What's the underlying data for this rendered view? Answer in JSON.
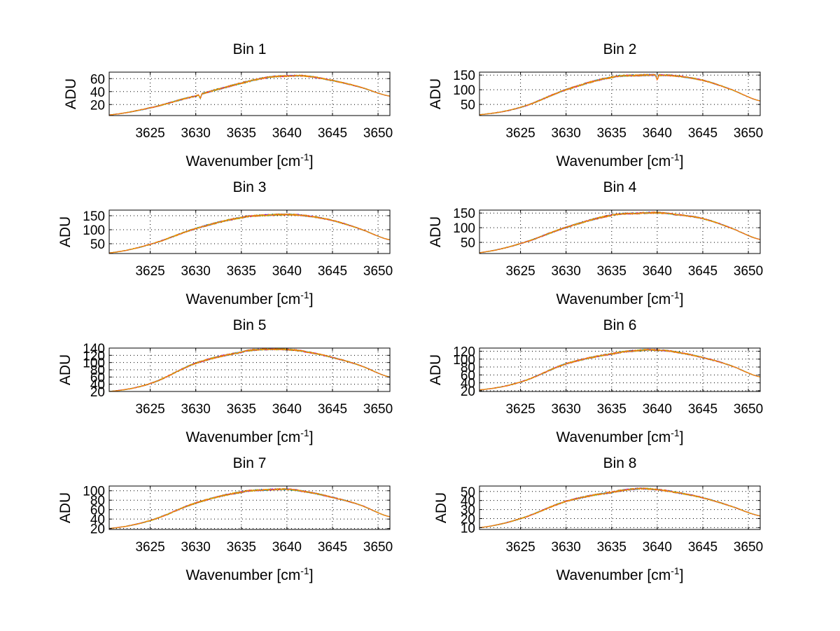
{
  "figure": {
    "background": "#ffffff",
    "series_colors": [
      "#0000ff",
      "#007f00",
      "#ff0000",
      "#00bfbf",
      "#bf00bf",
      "#bfbf00",
      "#ff8000"
    ]
  },
  "chart_data": [
    {
      "type": "line",
      "title": "Bin 1",
      "xlabel": "Wavenumber [cm",
      "xlabel_sup": "-1",
      "xlabel_end": "]",
      "ylabel": "ADU",
      "xlim": [
        3620.5,
        3651.3
      ],
      "ylim": [
        3,
        70
      ],
      "xticks": [
        3625,
        3630,
        3635,
        3640,
        3645,
        3650
      ],
      "xticklabels": [
        "3625",
        "3630",
        "3635",
        "3640",
        "3645",
        "3650"
      ],
      "yticks": [
        20,
        40,
        60
      ],
      "yticklabels": [
        "20",
        "40",
        "60"
      ],
      "grid": true,
      "x": [
        3620.5,
        3625,
        3630,
        3632,
        3635,
        3638,
        3640,
        3642,
        3645,
        3648,
        3651.3
      ],
      "y": [
        4,
        15,
        33,
        42,
        53,
        62,
        64,
        64,
        57,
        47,
        33
      ],
      "features": [
        {
          "x": 3630.5,
          "depth": 6
        }
      ]
    },
    {
      "type": "line",
      "title": "Bin 2",
      "xlabel": "Wavenumber [cm",
      "xlabel_sup": "-1",
      "xlabel_end": "]",
      "ylabel": "ADU",
      "xlim": [
        3620.5,
        3651.3
      ],
      "ylim": [
        12,
        160
      ],
      "xticks": [
        3625,
        3630,
        3635,
        3640,
        3645,
        3650
      ],
      "xticklabels": [
        "3625",
        "3630",
        "3635",
        "3640",
        "3645",
        "3650"
      ],
      "yticks": [
        50,
        100,
        150
      ],
      "yticklabels": [
        "50",
        "100",
        "150"
      ],
      "grid": true,
      "x": [
        3620.5,
        3625,
        3630,
        3635,
        3638,
        3640,
        3642,
        3645,
        3648,
        3651.3
      ],
      "y": [
        15,
        40,
        100,
        142,
        149,
        150,
        147,
        132,
        102,
        62
      ],
      "features": [
        {
          "x": 3640,
          "depth": 15
        }
      ]
    },
    {
      "type": "line",
      "title": "Bin 3",
      "xlabel": "Wavenumber [cm",
      "xlabel_sup": "-1",
      "xlabel_end": "]",
      "ylabel": "ADU",
      "xlim": [
        3620.5,
        3651.3
      ],
      "ylim": [
        15,
        170
      ],
      "xticks": [
        3625,
        3630,
        3635,
        3640,
        3645,
        3650
      ],
      "xticklabels": [
        "3625",
        "3630",
        "3635",
        "3640",
        "3645",
        "3650"
      ],
      "yticks": [
        50,
        100,
        150
      ],
      "yticklabels": [
        "50",
        "100",
        "150"
      ],
      "grid": true,
      "x": [
        3620.5,
        3625,
        3630,
        3635,
        3638,
        3640,
        3642,
        3645,
        3648,
        3651.3
      ],
      "y": [
        17,
        48,
        104,
        143,
        152,
        154,
        150,
        133,
        103,
        64
      ],
      "features": []
    },
    {
      "type": "line",
      "title": "Bin 4",
      "xlabel": "Wavenumber [cm",
      "xlabel_sup": "-1",
      "xlabel_end": "]",
      "ylabel": "ADU",
      "xlim": [
        3620.5,
        3651.3
      ],
      "ylim": [
        12,
        160
      ],
      "xticks": [
        3625,
        3630,
        3635,
        3640,
        3645,
        3650
      ],
      "xticklabels": [
        "3625",
        "3630",
        "3635",
        "3640",
        "3645",
        "3650"
      ],
      "yticks": [
        50,
        100,
        150
      ],
      "yticklabels": [
        "50",
        "100",
        "150"
      ],
      "grid": true,
      "x": [
        3620.5,
        3625,
        3630,
        3635,
        3638,
        3640,
        3642,
        3645,
        3648,
        3651.3
      ],
      "y": [
        15,
        46,
        101,
        142,
        149,
        151,
        145,
        131,
        100,
        60
      ],
      "features": []
    },
    {
      "type": "line",
      "title": "Bin 5",
      "xlabel": "Wavenumber [cm",
      "xlabel_sup": "-1",
      "xlabel_end": "]",
      "ylabel": "ADU",
      "xlim": [
        3620.5,
        3651.3
      ],
      "ylim": [
        20,
        140
      ],
      "xticks": [
        3625,
        3630,
        3635,
        3640,
        3645,
        3650
      ],
      "xticklabels": [
        "3625",
        "3630",
        "3635",
        "3640",
        "3645",
        "3650"
      ],
      "yticks": [
        20,
        40,
        60,
        80,
        100,
        120,
        140
      ],
      "yticklabels": [
        "20",
        "40",
        "60",
        "80",
        "100",
        "120",
        "140"
      ],
      "grid": true,
      "x": [
        3620.5,
        3625,
        3630,
        3635,
        3637,
        3640,
        3642,
        3645,
        3648,
        3651.3
      ],
      "y": [
        20,
        42,
        98,
        128,
        136,
        136,
        130,
        114,
        92,
        60
      ],
      "features": []
    },
    {
      "type": "line",
      "title": "Bin 6",
      "xlabel": "Wavenumber [cm",
      "xlabel_sup": "-1",
      "xlabel_end": "]",
      "ylabel": "ADU",
      "xlim": [
        3620.5,
        3651.3
      ],
      "ylim": [
        18,
        128
      ],
      "xticks": [
        3625,
        3630,
        3635,
        3640,
        3645,
        3650
      ],
      "xticklabels": [
        "3625",
        "3630",
        "3635",
        "3640",
        "3645",
        "3650"
      ],
      "yticks": [
        20,
        40,
        60,
        80,
        100,
        120
      ],
      "yticklabels": [
        "20",
        "40",
        "60",
        "80",
        "100",
        "120"
      ],
      "grid": true,
      "x": [
        3620.5,
        3625,
        3630,
        3635,
        3638,
        3640,
        3642,
        3645,
        3648,
        3651.3
      ],
      "y": [
        22,
        42,
        88,
        113,
        122,
        123,
        118,
        104,
        84,
        55
      ],
      "features": []
    },
    {
      "type": "line",
      "title": "Bin 7",
      "xlabel": "Wavenumber [cm",
      "xlabel_sup": "-1",
      "xlabel_end": "]",
      "ylabel": "ADU",
      "xlim": [
        3620.5,
        3651.3
      ],
      "ylim": [
        18,
        110
      ],
      "xticks": [
        3625,
        3630,
        3635,
        3640,
        3645,
        3650
      ],
      "xticklabels": [
        "3625",
        "3630",
        "3635",
        "3640",
        "3645",
        "3650"
      ],
      "yticks": [
        20,
        40,
        60,
        80,
        100
      ],
      "yticklabels": [
        "20",
        "40",
        "60",
        "80",
        "100"
      ],
      "grid": true,
      "x": [
        3620.5,
        3625,
        3630,
        3635,
        3638,
        3640,
        3642,
        3645,
        3648,
        3651.3
      ],
      "y": [
        20,
        37,
        74,
        97,
        102,
        103,
        98,
        86,
        70,
        45
      ],
      "features": []
    },
    {
      "type": "line",
      "title": "Bin 8",
      "xlabel": "Wavenumber [cm",
      "xlabel_sup": "-1",
      "xlabel_end": "]",
      "ylabel": "ADU",
      "xlim": [
        3620.5,
        3651.3
      ],
      "ylim": [
        8,
        56
      ],
      "xticks": [
        3625,
        3630,
        3635,
        3640,
        3645,
        3650
      ],
      "xticklabels": [
        "3625",
        "3630",
        "3635",
        "3640",
        "3645",
        "3650"
      ],
      "yticks": [
        10,
        20,
        30,
        40,
        50
      ],
      "yticklabels": [
        "10",
        "20",
        "30",
        "40",
        "50"
      ],
      "grid": true,
      "x": [
        3620.5,
        3625,
        3630,
        3635,
        3638,
        3640,
        3642,
        3645,
        3648,
        3651.3
      ],
      "y": [
        10,
        20,
        39,
        49,
        53,
        52,
        49,
        43,
        34,
        23
      ],
      "features": []
    }
  ]
}
